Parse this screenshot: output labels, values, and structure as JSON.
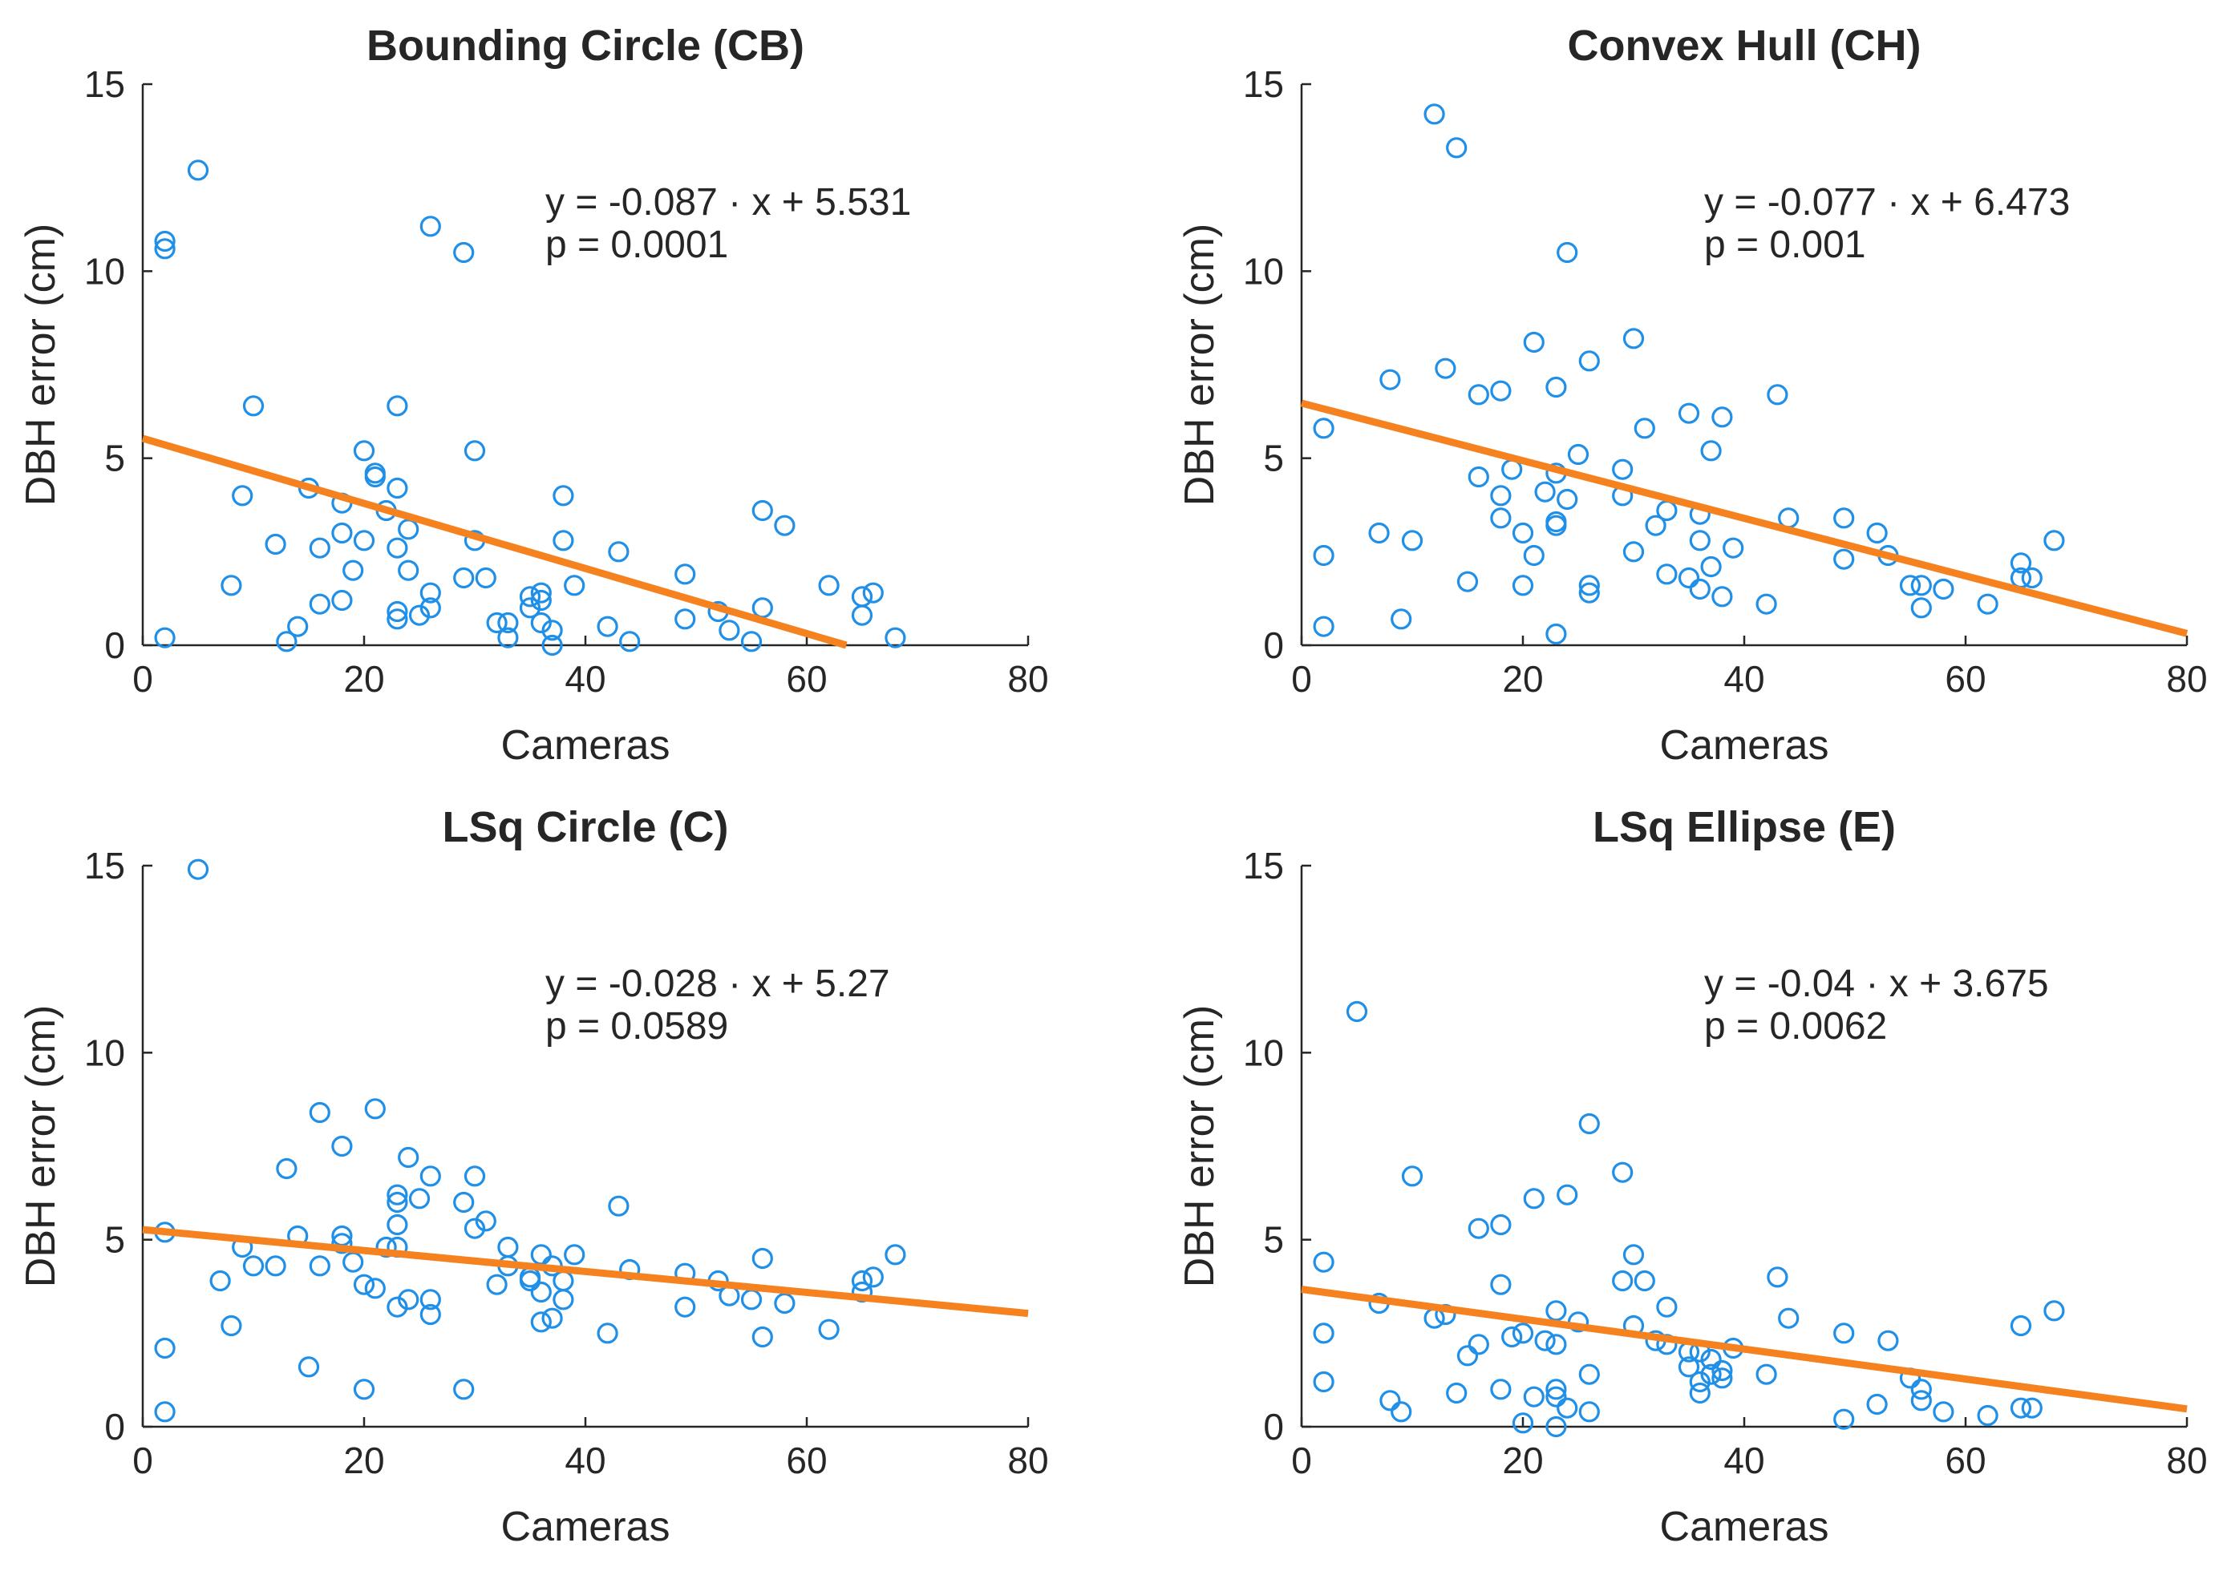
{
  "colors": {
    "marker": "#1f8fe8",
    "fit": "#f5821f",
    "axis": "#262626",
    "background": "#ffffff"
  },
  "chart_data": [
    {
      "type": "scatter",
      "title": "Bounding Circle (CB)",
      "xlabel": "Cameras",
      "ylabel": "DBH error (cm)",
      "xlim": [
        0,
        80
      ],
      "ylim": [
        0,
        15
      ],
      "xticks": [
        "0",
        "20",
        "40",
        "60",
        "80"
      ],
      "yticks": [
        "0",
        "5",
        "10",
        "15"
      ],
      "equation": "y = -0.087 · x + 5.531",
      "pvalue": "p = 0.0001",
      "fit": {
        "slope": -0.087,
        "intercept": 5.531
      },
      "points": [
        [
          2,
          10.8
        ],
        [
          2,
          10.6
        ],
        [
          2,
          0.2
        ],
        [
          5,
          12.7
        ],
        [
          8,
          1.6
        ],
        [
          9,
          4
        ],
        [
          10,
          6.4
        ],
        [
          12,
          2.7
        ],
        [
          13,
          0.1
        ],
        [
          14,
          0.5
        ],
        [
          15,
          4.2
        ],
        [
          16,
          2.6
        ],
        [
          16,
          1.1
        ],
        [
          18,
          3.8
        ],
        [
          18,
          3
        ],
        [
          18,
          1.2
        ],
        [
          19,
          2
        ],
        [
          20,
          5.2
        ],
        [
          20,
          2.8
        ],
        [
          21,
          4.6
        ],
        [
          21,
          4.5
        ],
        [
          22,
          3.6
        ],
        [
          23,
          6.4
        ],
        [
          23,
          4.2
        ],
        [
          23,
          2.6
        ],
        [
          23,
          0.9
        ],
        [
          23,
          0.7
        ],
        [
          24,
          3.1
        ],
        [
          24,
          2
        ],
        [
          25,
          0.8
        ],
        [
          26,
          11.2
        ],
        [
          26,
          1.4
        ],
        [
          26,
          1
        ],
        [
          29,
          10.5
        ],
        [
          29,
          1.8
        ],
        [
          30,
          5.2
        ],
        [
          30,
          2.8
        ],
        [
          31,
          1.8
        ],
        [
          32,
          0.6
        ],
        [
          33,
          0.6
        ],
        [
          33,
          0.2
        ],
        [
          35,
          1.3
        ],
        [
          35,
          1
        ],
        [
          36,
          1.4
        ],
        [
          36,
          1.2
        ],
        [
          36,
          0.6
        ],
        [
          37,
          0.4
        ],
        [
          37,
          0
        ],
        [
          38,
          4
        ],
        [
          38,
          2.8
        ],
        [
          39,
          1.6
        ],
        [
          42,
          0.5
        ],
        [
          43,
          2.5
        ],
        [
          44,
          0.1
        ],
        [
          49,
          1.9
        ],
        [
          49,
          0.7
        ],
        [
          52,
          0.9
        ],
        [
          53,
          0.4
        ],
        [
          55,
          0.1
        ],
        [
          56,
          3.6
        ],
        [
          56,
          1
        ],
        [
          58,
          3.2
        ],
        [
          62,
          1.6
        ],
        [
          65,
          1.3
        ],
        [
          65,
          0.8
        ],
        [
          66,
          1.4
        ],
        [
          68,
          0.2
        ]
      ]
    },
    {
      "type": "scatter",
      "title": "Convex Hull (CH)",
      "xlabel": "Cameras",
      "ylabel": "DBH error (cm)",
      "xlim": [
        0,
        80
      ],
      "ylim": [
        0,
        15
      ],
      "xticks": [
        "0",
        "20",
        "40",
        "60",
        "80"
      ],
      "yticks": [
        "0",
        "5",
        "10",
        "15"
      ],
      "equation": "y = -0.077 · x + 6.473",
      "pvalue": "p = 0.001",
      "fit": {
        "slope": -0.077,
        "intercept": 6.473
      },
      "points": [
        [
          2,
          5.8
        ],
        [
          2,
          2.4
        ],
        [
          2,
          0.5
        ],
        [
          7,
          3
        ],
        [
          8,
          7.1
        ],
        [
          9,
          0.7
        ],
        [
          10,
          2.8
        ],
        [
          12,
          14.2
        ],
        [
          13,
          7.4
        ],
        [
          14,
          13.3
        ],
        [
          15,
          1.7
        ],
        [
          16,
          6.7
        ],
        [
          16,
          4.5
        ],
        [
          18,
          6.8
        ],
        [
          18,
          4
        ],
        [
          18,
          3.4
        ],
        [
          19,
          4.7
        ],
        [
          20,
          3
        ],
        [
          20,
          1.6
        ],
        [
          21,
          8.1
        ],
        [
          21,
          2.4
        ],
        [
          22,
          4.1
        ],
        [
          23,
          6.9
        ],
        [
          23,
          4.6
        ],
        [
          23,
          3.3
        ],
        [
          23,
          3.2
        ],
        [
          23,
          0.3
        ],
        [
          24,
          10.5
        ],
        [
          24,
          3.9
        ],
        [
          25,
          5.1
        ],
        [
          26,
          7.6
        ],
        [
          26,
          1.6
        ],
        [
          26,
          1.4
        ],
        [
          29,
          4.7
        ],
        [
          29,
          4
        ],
        [
          30,
          8.2
        ],
        [
          30,
          2.5
        ],
        [
          31,
          5.8
        ],
        [
          32,
          3.2
        ],
        [
          33,
          3.6
        ],
        [
          33,
          1.9
        ],
        [
          35,
          6.2
        ],
        [
          35,
          1.8
        ],
        [
          36,
          3.5
        ],
        [
          36,
          2.8
        ],
        [
          36,
          1.5
        ],
        [
          37,
          5.2
        ],
        [
          37,
          2.1
        ],
        [
          38,
          6.1
        ],
        [
          38,
          1.3
        ],
        [
          39,
          2.6
        ],
        [
          42,
          1.1
        ],
        [
          43,
          6.7
        ],
        [
          44,
          3.4
        ],
        [
          49,
          3.4
        ],
        [
          49,
          2.3
        ],
        [
          52,
          3
        ],
        [
          53,
          2.4
        ],
        [
          55,
          1.6
        ],
        [
          56,
          1.6
        ],
        [
          56,
          1
        ],
        [
          58,
          1.5
        ],
        [
          62,
          1.1
        ],
        [
          65,
          2.2
        ],
        [
          65,
          1.8
        ],
        [
          66,
          1.8
        ],
        [
          68,
          2.8
        ]
      ]
    },
    {
      "type": "scatter",
      "title": "LSq Circle (C)",
      "xlabel": "Cameras",
      "ylabel": "DBH error (cm)",
      "xlim": [
        0,
        80
      ],
      "ylim": [
        0,
        15
      ],
      "xticks": [
        "0",
        "20",
        "40",
        "60",
        "80"
      ],
      "yticks": [
        "0",
        "5",
        "10",
        "15"
      ],
      "equation": "y = -0.028 · x + 5.27",
      "pvalue": "p = 0.0589",
      "fit": {
        "slope": -0.028,
        "intercept": 5.27
      },
      "points": [
        [
          2,
          5.2
        ],
        [
          2,
          2.1
        ],
        [
          2,
          0.4
        ],
        [
          5,
          14.9
        ],
        [
          7,
          3.9
        ],
        [
          8,
          2.7
        ],
        [
          9,
          4.8
        ],
        [
          10,
          4.3
        ],
        [
          12,
          4.3
        ],
        [
          13,
          6.9
        ],
        [
          14,
          5.1
        ],
        [
          15,
          1.6
        ],
        [
          16,
          8.4
        ],
        [
          16,
          4.3
        ],
        [
          18,
          7.5
        ],
        [
          18,
          5.1
        ],
        [
          18,
          4.9
        ],
        [
          19,
          4.4
        ],
        [
          20,
          3.8
        ],
        [
          20,
          1
        ],
        [
          21,
          8.5
        ],
        [
          21,
          3.7
        ],
        [
          22,
          4.8
        ],
        [
          23,
          6.2
        ],
        [
          23,
          6
        ],
        [
          23,
          5.4
        ],
        [
          23,
          4.8
        ],
        [
          23,
          3.2
        ],
        [
          24,
          7.2
        ],
        [
          24,
          3.4
        ],
        [
          25,
          6.1
        ],
        [
          26,
          6.7
        ],
        [
          26,
          3.4
        ],
        [
          26,
          3
        ],
        [
          29,
          6
        ],
        [
          29,
          1
        ],
        [
          30,
          6.7
        ],
        [
          30,
          5.3
        ],
        [
          31,
          5.5
        ],
        [
          32,
          3.8
        ],
        [
          33,
          4.8
        ],
        [
          33,
          4.3
        ],
        [
          35,
          4
        ],
        [
          35,
          3.9
        ],
        [
          36,
          4.6
        ],
        [
          36,
          3.6
        ],
        [
          36,
          2.8
        ],
        [
          37,
          4.3
        ],
        [
          37,
          2.9
        ],
        [
          38,
          3.9
        ],
        [
          38,
          3.4
        ],
        [
          39,
          4.6
        ],
        [
          42,
          2.5
        ],
        [
          43,
          5.9
        ],
        [
          44,
          4.2
        ],
        [
          49,
          4.1
        ],
        [
          49,
          3.2
        ],
        [
          52,
          3.9
        ],
        [
          53,
          3.5
        ],
        [
          55,
          3.4
        ],
        [
          56,
          4.5
        ],
        [
          56,
          2.4
        ],
        [
          58,
          3.3
        ],
        [
          62,
          2.6
        ],
        [
          65,
          3.9
        ],
        [
          65,
          3.6
        ],
        [
          66,
          4
        ],
        [
          68,
          4.6
        ]
      ]
    },
    {
      "type": "scatter",
      "title": "LSq Ellipse (E)",
      "xlabel": "Cameras",
      "ylabel": "DBH error (cm)",
      "xlim": [
        0,
        80
      ],
      "ylim": [
        0,
        15
      ],
      "xticks": [
        "0",
        "20",
        "40",
        "60",
        "80"
      ],
      "yticks": [
        "0",
        "5",
        "10",
        "15"
      ],
      "equation": "y = -0.04 · x + 3.675",
      "pvalue": "p = 0.0062",
      "fit": {
        "slope": -0.04,
        "intercept": 3.675
      },
      "points": [
        [
          2,
          4.4
        ],
        [
          2,
          2.5
        ],
        [
          2,
          1.2
        ],
        [
          5,
          11.1
        ],
        [
          7,
          3.3
        ],
        [
          8,
          0.7
        ],
        [
          9,
          0.4
        ],
        [
          10,
          6.7
        ],
        [
          12,
          2.9
        ],
        [
          13,
          3
        ],
        [
          14,
          0.9
        ],
        [
          15,
          1.9
        ],
        [
          16,
          5.3
        ],
        [
          16,
          2.2
        ],
        [
          18,
          5.4
        ],
        [
          18,
          3.8
        ],
        [
          18,
          1
        ],
        [
          19,
          2.4
        ],
        [
          20,
          2.5
        ],
        [
          20,
          0.1
        ],
        [
          21,
          6.1
        ],
        [
          21,
          0.8
        ],
        [
          22,
          2.3
        ],
        [
          23,
          3.1
        ],
        [
          23,
          2.2
        ],
        [
          23,
          1
        ],
        [
          23,
          0.8
        ],
        [
          23,
          0
        ],
        [
          24,
          6.2
        ],
        [
          24,
          0.5
        ],
        [
          25,
          2.8
        ],
        [
          26,
          8.1
        ],
        [
          26,
          1.4
        ],
        [
          26,
          0.4
        ],
        [
          29,
          6.8
        ],
        [
          29,
          3.9
        ],
        [
          30,
          4.6
        ],
        [
          30,
          2.7
        ],
        [
          31,
          3.9
        ],
        [
          32,
          2.3
        ],
        [
          33,
          3.2
        ],
        [
          33,
          2.2
        ],
        [
          35,
          2
        ],
        [
          35,
          1.6
        ],
        [
          36,
          2
        ],
        [
          36,
          1.2
        ],
        [
          36,
          0.9
        ],
        [
          37,
          1.8
        ],
        [
          37,
          1.4
        ],
        [
          38,
          1.5
        ],
        [
          38,
          1.3
        ],
        [
          39,
          2.1
        ],
        [
          42,
          1.4
        ],
        [
          43,
          4
        ],
        [
          44,
          2.9
        ],
        [
          49,
          2.5
        ],
        [
          49,
          0.2
        ],
        [
          52,
          0.6
        ],
        [
          53,
          2.3
        ],
        [
          55,
          1.3
        ],
        [
          56,
          1
        ],
        [
          56,
          0.7
        ],
        [
          58,
          0.4
        ],
        [
          62,
          0.3
        ],
        [
          65,
          2.7
        ],
        [
          65,
          0.5
        ],
        [
          66,
          0.5
        ],
        [
          68,
          3.1
        ]
      ]
    }
  ]
}
